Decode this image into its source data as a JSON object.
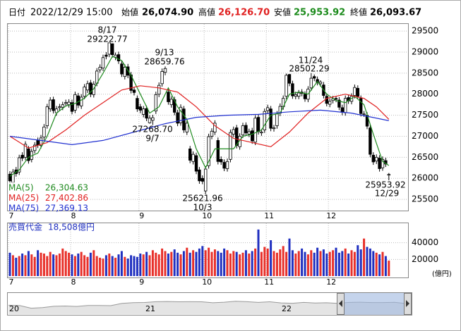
{
  "header": {
    "date_label": "日付",
    "date": "2022/12/29 15:00",
    "open_label": "始値",
    "open": "26,074.90",
    "high_label": "高値",
    "high": "26,126.70",
    "low_label": "安値",
    "low": "25,953.92",
    "close_label": "終値",
    "close": "26,093.67"
  },
  "chart_data": {
    "type": "candlestick",
    "open": [
      26100,
      25900,
      26200,
      26150,
      26550,
      26500,
      26700,
      26450,
      26660,
      26900,
      26780,
      26980,
      27250,
      27650,
      27870,
      27560,
      27680,
      27690,
      27780,
      27750,
      27800,
      27620,
      27960,
      27720,
      27950,
      28100,
      28270,
      27990,
      28260,
      28580,
      28620,
      28930,
      28950,
      29200,
      28880,
      28940,
      28720,
      28420,
      28650,
      28460,
      28100,
      27900,
      27700,
      27520,
      27660,
      27320,
      27380,
      27600,
      28000,
      28250,
      28520,
      28050,
      27750,
      27870,
      27560,
      27320,
      27650,
      27100,
      26700,
      26400,
      26540,
      26200,
      26000,
      25700,
      26300,
      27000,
      27100,
      26900,
      26450,
      26380,
      26230,
      26450,
      27050,
      27200,
      26750,
      27030,
      27260,
      27050,
      27130,
      26860,
      27450,
      27080,
      27150,
      27610,
      27650,
      27180,
      27250,
      27550,
      27700,
      27950,
      28470,
      28250,
      27950,
      27950,
      28050,
      28000,
      27880,
      28150,
      28420,
      28350,
      28250,
      28220,
      27950,
      27760,
      27850,
      27900,
      27860,
      27680,
      27560,
      27920,
      27830,
      27970,
      28140,
      27900,
      27520,
      27500,
      27200,
      26550,
      26410,
      26480,
      26250,
      26420,
      26074.9
    ],
    "high": [
      26170,
      26220,
      26270,
      26560,
      26620,
      26880,
      26770,
      26710,
      26860,
      26970,
      27030,
      27290,
      27770,
      27930,
      27940,
      27720,
      27770,
      27820,
      27870,
      27880,
      27870,
      28060,
      28030,
      28000,
      28240,
      28320,
      28340,
      28310,
      28620,
      28710,
      28940,
      29000,
      29222.77,
      29210,
      28990,
      29010,
      28790,
      28710,
      28720,
      28530,
      28170,
      27970,
      27770,
      27720,
      27730,
      27500,
      27510,
      28060,
      28280,
      28610,
      28659.76,
      28120,
      27950,
      27940,
      27630,
      27760,
      27720,
      27380,
      26770,
      26640,
      26610,
      26270,
      26070,
      26290,
      27060,
      27190,
      27380,
      26970,
      26520,
      26450,
      26470,
      27160,
      27230,
      27270,
      27070,
      27320,
      27330,
      27180,
      27200,
      27500,
      27520,
      27170,
      27660,
      27750,
      27720,
      27270,
      27600,
      27780,
      27970,
      28490,
      28480,
      28320,
      28060,
      28100,
      28120,
      28070,
      28190,
      28502.29,
      28470,
      28420,
      28330,
      28290,
      28020,
      27900,
      27960,
      27950,
      27930,
      27750,
      27970,
      27990,
      28020,
      28230,
      28210,
      27970,
      27600,
      27570,
      27270,
      26620,
      26570,
      26550,
      26520,
      26490,
      26126.7
    ],
    "low": [
      25870,
      25830,
      26040,
      26080,
      26410,
      26430,
      26350,
      26380,
      26590,
      26720,
      26710,
      26910,
      27180,
      27580,
      27540,
      27490,
      27610,
      27620,
      27710,
      27680,
      27520,
      27550,
      27670,
      27650,
      27880,
      28030,
      27930,
      27920,
      28190,
      28510,
      28550,
      28830,
      28880,
      28870,
      28810,
      28720,
      28410,
      28350,
      28380,
      28020,
      27970,
      27580,
      27550,
      27450,
      27360,
      27300,
      27268.7,
      27530,
      27930,
      28180,
      28450,
      27750,
      27680,
      27500,
      27240,
      27250,
      27080,
      27030,
      26360,
      26330,
      26100,
      25870,
      25860,
      25621.96,
      26230,
      26930,
      27030,
      26330,
      26320,
      26170,
      26160,
      26380,
      26980,
      26710,
      26680,
      26960,
      27010,
      26980,
      26820,
      26790,
      27040,
      27010,
      27080,
      27540,
      27120,
      27110,
      27180,
      27480,
      27630,
      27880,
      28190,
      27890,
      27880,
      27880,
      27950,
      27820,
      27810,
      28080,
      28310,
      28210,
      28180,
      27900,
      27710,
      27690,
      27780,
      27810,
      27620,
      27500,
      27490,
      27770,
      27760,
      27900,
      27880,
      27470,
      27460,
      27170,
      26500,
      26320,
      26340,
      26160,
      26180,
      26270,
      25953.92
    ],
    "close": [
      25940,
      26150,
      26110,
      26490,
      26480,
      26810,
      26420,
      26640,
      26790,
      26790,
      26960,
      27220,
      27700,
      27860,
      27610,
      27650,
      27700,
      27750,
      27800,
      27810,
      27590,
      27990,
      27740,
      27930,
      28170,
      28250,
      28000,
      28240,
      28550,
      28640,
      28870,
      28900,
      29220,
      28940,
      28930,
      28790,
      28480,
      28640,
      28450,
      28090,
      28040,
      27650,
      27620,
      27650,
      27430,
      27430,
      27440,
      27990,
      28210,
      28540,
      28610,
      27820,
      27880,
      27570,
      27310,
      27690,
      27150,
      27310,
      26430,
      26570,
      26170,
      25940,
      25930,
      26220,
      26990,
      27120,
      27310,
      26400,
      26390,
      26240,
      26400,
      27090,
      27160,
      26780,
      27000,
      27250,
      27080,
      27110,
      26890,
      27430,
      27110,
      27100,
      27590,
      27680,
      27190,
      27200,
      27530,
      27710,
      27900,
      28450,
      28260,
      27960,
      27990,
      28030,
      28020,
      27890,
      28120,
      28380,
      28380,
      28280,
      28290,
      27970,
      27780,
      27830,
      27890,
      27880,
      27690,
      27570,
      27900,
      27840,
      27950,
      28160,
      27950,
      27540,
      27530,
      27240,
      26570,
      26390,
      26500,
      26230,
      26450,
      26340,
      26093.67
    ],
    "ylim": [
      25250,
      29670
    ],
    "yticks": [
      29500,
      29000,
      28500,
      28000,
      27500,
      27000,
      26500,
      26000,
      25500
    ],
    "grid": true,
    "xticks": [
      {
        "value": 0,
        "label": "7"
      },
      {
        "value": 20,
        "label": "8"
      },
      {
        "value": 42,
        "label": "9"
      },
      {
        "value": 63,
        "label": "10"
      },
      {
        "value": 83,
        "label": "11"
      },
      {
        "value": 103,
        "label": "12"
      }
    ],
    "up_color": "#ffffff",
    "down_color": "#000000",
    "series": [
      {
        "name": "MA(5)",
        "legend_value": "26,304.63",
        "color": "#1f8a1f",
        "x": [
          0,
          3,
          6,
          9,
          12,
          15,
          18,
          21,
          24,
          27,
          30,
          33,
          36,
          39,
          42,
          45,
          48,
          51,
          54,
          57,
          60,
          63,
          66,
          69,
          72,
          75,
          78,
          81,
          84,
          87,
          90,
          93,
          96,
          99,
          102,
          105,
          108,
          111,
          114,
          117,
          120,
          122
        ],
        "values": [
          26050,
          26200,
          26500,
          26600,
          27000,
          27550,
          27720,
          27780,
          27900,
          28130,
          28500,
          28900,
          28800,
          28450,
          28000,
          27550,
          27700,
          28150,
          27700,
          27400,
          26700,
          26250,
          26700,
          26700,
          26700,
          27000,
          27050,
          27150,
          27500,
          27550,
          28000,
          28050,
          28000,
          28300,
          28000,
          27850,
          27800,
          27950,
          27750,
          27050,
          26400,
          26304.63
        ]
      },
      {
        "name": "MA(25)",
        "legend_value": "27,402.86",
        "color": "#e02020",
        "x": [
          0,
          6,
          12,
          18,
          24,
          30,
          36,
          42,
          48,
          54,
          60,
          66,
          72,
          78,
          84,
          90,
          96,
          102,
          108,
          114,
          118,
          122
        ],
        "values": [
          27000,
          26720,
          26850,
          27150,
          27500,
          27800,
          28100,
          28200,
          28150,
          28050,
          27700,
          27250,
          26950,
          26850,
          26750,
          27100,
          27550,
          27900,
          28000,
          27900,
          27700,
          27402.86
        ]
      },
      {
        "name": "MA(75)",
        "legend_value": "27,369.13",
        "color": "#2030d0",
        "x": [
          0,
          10,
          20,
          30,
          40,
          50,
          60,
          70,
          80,
          90,
          100,
          110,
          122
        ],
        "values": [
          27000,
          26900,
          26800,
          26900,
          27100,
          27300,
          27450,
          27500,
          27520,
          27580,
          27620,
          27550,
          27369.13
        ]
      }
    ],
    "annotations": [
      "8/17",
      "29222.77",
      "9/13",
      "28659.76",
      "27268.70",
      "9/7",
      "25621.96",
      "10/3",
      "11/24",
      "28502.29",
      "25953.92",
      "12/29"
    ],
    "volume": {
      "label": "売買代金",
      "last": "18,508億円",
      "unit": "(億円)",
      "ylim": [
        0,
        63333
      ],
      "yticks": [
        40000,
        20000
      ],
      "up_color": "#e8302a",
      "down_color": "#2030c0",
      "values": [
        28000,
        25000,
        22000,
        24000,
        27000,
        25000,
        30000,
        26000,
        23000,
        31000,
        28000,
        27000,
        24000,
        29000,
        26000,
        25000,
        27000,
        33000,
        30000,
        28000,
        26000,
        24000,
        27000,
        29000,
        25000,
        23000,
        28000,
        31000,
        24000,
        22000,
        21000,
        25000,
        27000,
        24000,
        22000,
        26000,
        30000,
        23000,
        21000,
        25000,
        24000,
        23000,
        27000,
        26000,
        29000,
        25000,
        31000,
        28000,
        26000,
        33000,
        30000,
        27000,
        29000,
        32000,
        28000,
        26000,
        30000,
        34000,
        28000,
        31000,
        29000,
        33000,
        36000,
        31000,
        34000,
        29000,
        32000,
        30000,
        28000,
        33000,
        31000,
        27000,
        30000,
        29000,
        26000,
        28000,
        31000,
        27000,
        30000,
        33000,
        55800,
        29000,
        35000,
        33000,
        43000,
        30000,
        28000,
        32000,
        36000,
        29000,
        45000,
        31000,
        27000,
        30000,
        33000,
        29000,
        26000,
        31000,
        28000,
        34000,
        30000,
        32000,
        27000,
        29000,
        31000,
        34000,
        28000,
        30000,
        33000,
        27000,
        31000,
        29000,
        37000,
        32000,
        45000,
        35000,
        33000,
        30000,
        28000,
        26000,
        29000,
        24000,
        18508
      ]
    },
    "navigator": {
      "labels": [
        "20",
        "21",
        "22"
      ],
      "ylim": [
        10000,
        40000
      ],
      "color": "#999999",
      "values": [
        23500,
        23000,
        19000,
        20000,
        21900,
        22300,
        21700,
        23100,
        23200,
        22900,
        26400,
        27400,
        27700,
        28900,
        29200,
        28800,
        28900,
        28800,
        27300,
        28100,
        29500,
        28900,
        27800,
        28800,
        27000,
        26500,
        27800,
        26800,
        27300,
        26400,
        27800,
        28100,
        27600,
        27600,
        28000,
        26100
      ]
    }
  }
}
